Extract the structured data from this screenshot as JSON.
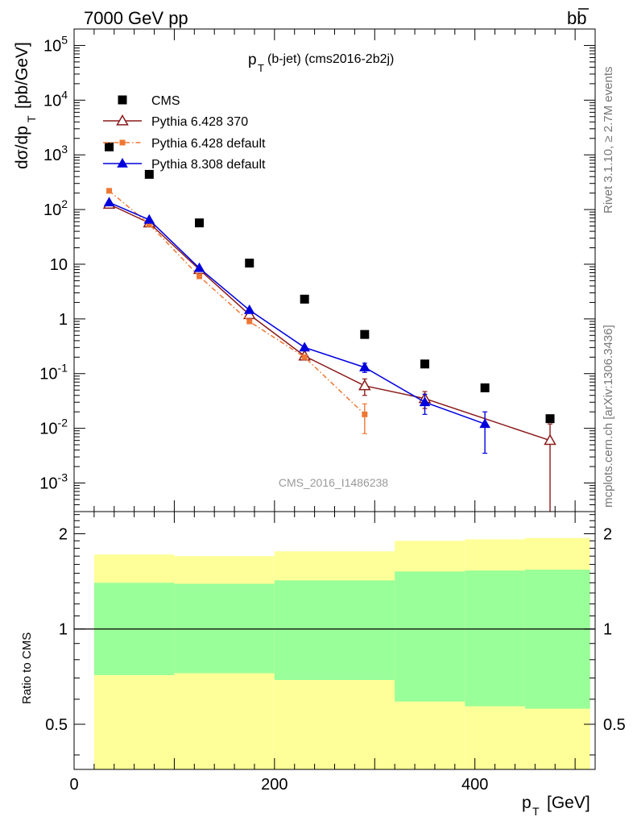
{
  "header": {
    "energy": "7000 GeV pp",
    "process": "bb",
    "plot_title_p": "p",
    "plot_title_sub": "T",
    "plot_title_rest": "(b-jet) (cms2016-2b2j)",
    "watermark": "CMS_2016_I1486238",
    "rivet_label": "Rivet 3.1.10, ≥ 2.7M events",
    "mcplots_label": "mcplots.cern.ch [arXiv:1306.3436]"
  },
  "axes": {
    "ylabel_main_prefix": "dσ/dp",
    "ylabel_main_sub": "T",
    "ylabel_main_units": "[pb/GeV]",
    "ylabel_ratio": "Ratio to CMS",
    "xlabel_p": "p",
    "xlabel_sub": "T",
    "xlabel_units": "[GeV]"
  },
  "chart_data": [
    {
      "type": "scatter",
      "panel": "main",
      "yscale": "log",
      "xlim": [
        0,
        520
      ],
      "ylim": [
        0.0003,
        200000
      ],
      "xlabel": "pT [GeV]",
      "ylabel": "dσ/dpT [pb/GeV]",
      "title": "pT(b-jet) (cms2016-2b2j)",
      "y_ticks": [
        {
          "value": 0.001,
          "label": "10^-3"
        },
        {
          "value": 0.01,
          "label": "10^-2"
        },
        {
          "value": 0.1,
          "label": "10^-1"
        },
        {
          "value": 1,
          "label": "1"
        },
        {
          "value": 10,
          "label": "10"
        },
        {
          "value": 100,
          "label": "10^2"
        },
        {
          "value": 1000,
          "label": "10^3"
        },
        {
          "value": 10000,
          "label": "10^4"
        },
        {
          "value": 100000,
          "label": "10^5"
        }
      ],
      "legend_position": "top-left",
      "series": [
        {
          "name": "CMS",
          "color": "#000000",
          "marker": "square",
          "x": [
            35,
            75,
            125,
            175,
            230,
            290,
            350,
            410,
            475
          ],
          "y": [
            1400,
            440,
            57,
            10.5,
            2.3,
            0.52,
            0.15,
            0.055,
            0.015
          ]
        },
        {
          "name": "Pythia 6.428 370",
          "color": "#8b1a1a",
          "marker": "open-triangle",
          "line": "solid",
          "x": [
            35,
            75,
            125,
            175,
            230,
            290,
            350,
            475
          ],
          "y": [
            125,
            57,
            8.0,
            1.2,
            0.21,
            0.06,
            0.035,
            0.006
          ],
          "err_low": [
            5,
            2,
            0.3,
            0.08,
            0.02,
            0.02,
            0.012,
            0.0058
          ],
          "err_high": [
            5,
            2,
            0.3,
            0.08,
            0.02,
            0.02,
            0.012,
            0.006
          ]
        },
        {
          "name": "Pythia 6.428 default",
          "color": "#ee7733",
          "marker": "square-small",
          "line": "dashdot",
          "x": [
            35,
            75,
            125,
            175,
            230,
            290
          ],
          "y": [
            220,
            54,
            6.0,
            0.9,
            0.2,
            0.018
          ],
          "err_low": [
            8,
            2,
            0.25,
            0.06,
            0.02,
            0.01
          ],
          "err_high": [
            8,
            2,
            0.25,
            0.06,
            0.02,
            0.01
          ]
        },
        {
          "name": "Pythia 8.308 default",
          "color": "#0000dd",
          "marker": "triangle",
          "line": "solid",
          "x": [
            35,
            75,
            125,
            175,
            230,
            290,
            350,
            410
          ],
          "y": [
            135,
            65,
            8.5,
            1.45,
            0.3,
            0.13,
            0.03,
            0.012
          ],
          "err_low": [
            5,
            2,
            0.3,
            0.08,
            0.02,
            0.025,
            0.012,
            0.0085
          ],
          "err_high": [
            5,
            2,
            0.3,
            0.08,
            0.02,
            0.025,
            0.012,
            0.008
          ]
        }
      ]
    },
    {
      "type": "area",
      "panel": "ratio",
      "xlim": [
        0,
        520
      ],
      "ylim": [
        0.36,
        2.35
      ],
      "ylabel": "Ratio to CMS",
      "y_ticks": [
        {
          "value": 0.5,
          "label": "0.5"
        },
        {
          "value": 1,
          "label": "1"
        },
        {
          "value": 2,
          "label": "2"
        }
      ],
      "x_ticks": [
        {
          "value": 0,
          "label": "0"
        },
        {
          "value": 200,
          "label": "200"
        },
        {
          "value": 400,
          "label": "400"
        }
      ],
      "bins": [
        {
          "lo": 20,
          "hi": 100,
          "inner": [
            0.715,
            1.4
          ],
          "outer": [
            0.36,
            1.72
          ]
        },
        {
          "lo": 100,
          "hi": 200,
          "inner": [
            0.725,
            1.39
          ],
          "outer": [
            0.36,
            1.7
          ]
        },
        {
          "lo": 200,
          "hi": 320,
          "inner": [
            0.69,
            1.425
          ],
          "outer": [
            0.36,
            1.76
          ]
        },
        {
          "lo": 320,
          "hi": 390,
          "inner": [
            0.59,
            1.52
          ],
          "outer": [
            0.36,
            1.9
          ]
        },
        {
          "lo": 390,
          "hi": 450,
          "inner": [
            0.57,
            1.53
          ],
          "outer": [
            0.36,
            1.92
          ]
        },
        {
          "lo": 450,
          "hi": 515,
          "inner": [
            0.56,
            1.54
          ],
          "outer": [
            0.36,
            1.94
          ]
        }
      ],
      "colors": {
        "inner": "#99ff99",
        "outer": "#ffff99",
        "unity": "#000000"
      }
    }
  ]
}
